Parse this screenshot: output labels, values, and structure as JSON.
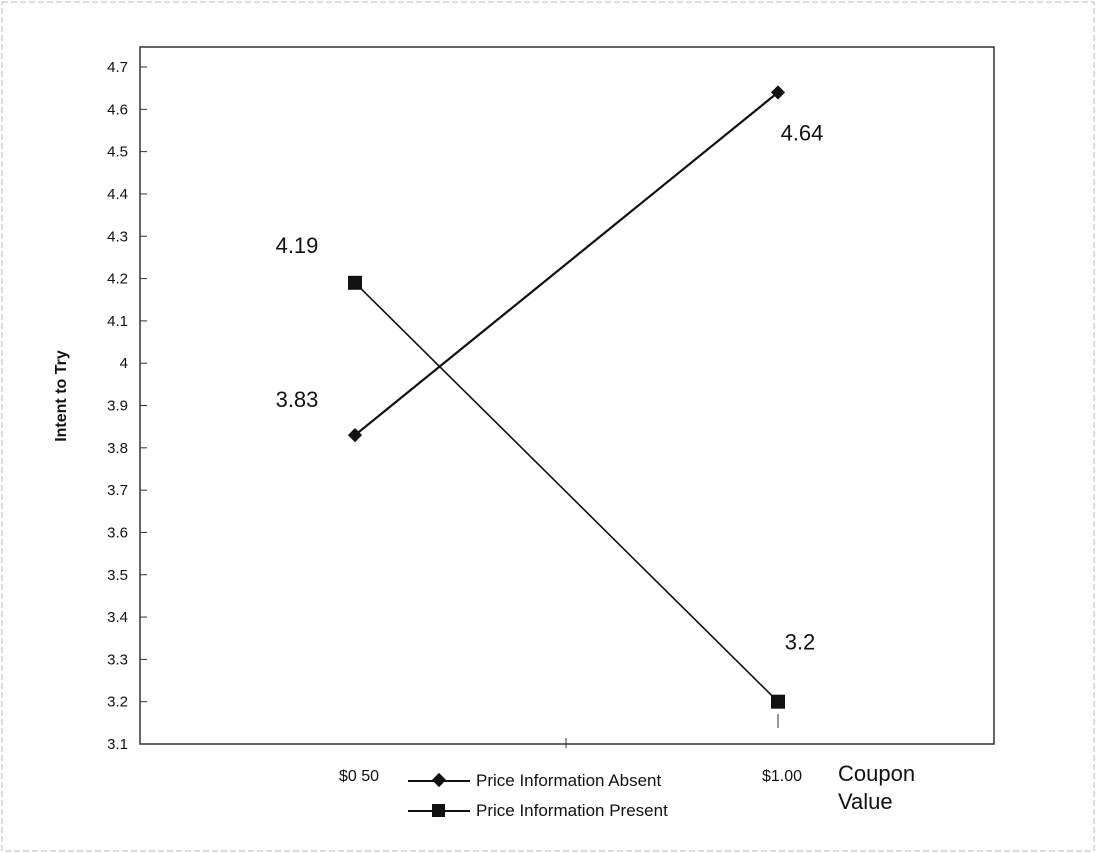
{
  "chart_data": {
    "type": "line",
    "categories": [
      "$0 50",
      "$1.00"
    ],
    "xlabel": "Coupon Value",
    "xlabel_lines": [
      "Coupon",
      "Value"
    ],
    "ylabel": "Intent to Try",
    "ylim": [
      3.1,
      4.7
    ],
    "yticks": [
      "3.1",
      "3.2",
      "3.3",
      "3.4",
      "3.5",
      "3.6",
      "3.7",
      "3.8",
      "3.9",
      "4",
      "4.1",
      "4.2",
      "4.3",
      "4.4",
      "4.5",
      "4.6",
      "4.7"
    ],
    "grid": false,
    "legend_position": "bottom",
    "series": [
      {
        "name": "Price Information Absent",
        "marker": "diamond",
        "values": [
          3.83,
          4.64
        ],
        "labels": [
          "3.83",
          "4.64"
        ]
      },
      {
        "name": "Price Information Present",
        "marker": "square",
        "values": [
          4.19,
          3.2
        ],
        "labels": [
          "4.19",
          "3.2"
        ]
      }
    ],
    "colors": {
      "line": "#111111",
      "frame": "#333333"
    }
  }
}
